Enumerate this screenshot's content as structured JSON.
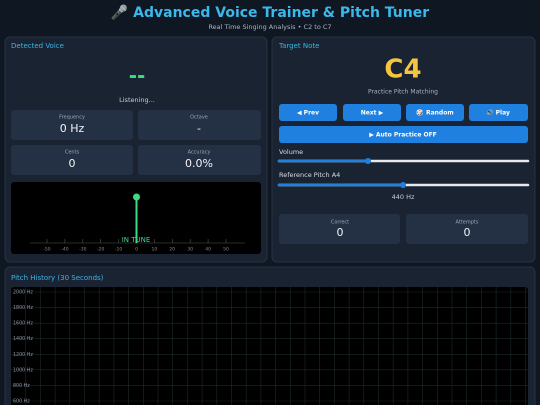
{
  "header": {
    "title": "🎤 Advanced Voice Trainer & Pitch Tuner",
    "subtitle": "Real Time Singing Analysis • C2 to C7"
  },
  "detected": {
    "title": "Detected Voice",
    "note": "--",
    "status": "Listening...",
    "stats": [
      {
        "label": "Frequency",
        "value": "0 Hz"
      },
      {
        "label": "Octave",
        "value": "-"
      },
      {
        "label": "Cents",
        "value": "0"
      },
      {
        "label": "Accuracy",
        "value": "0.0%"
      }
    ]
  },
  "tuner": {
    "ticks": [
      -50,
      -40,
      -30,
      -20,
      -10,
      0,
      10,
      20,
      30,
      40,
      50
    ],
    "needle": 0,
    "status": "IN TUNE"
  },
  "target": {
    "title": "Target Note",
    "note": "C4",
    "subtitle": "Practice Pitch Matching",
    "buttons": [
      "◀ Prev",
      "Next ▶",
      "🎲 Random",
      "🔊 Play"
    ],
    "auto_practice": "▶ Auto Practice OFF",
    "volume_label": "Volume",
    "reference_label": "Reference Pitch A4",
    "reference_value": "440 Hz",
    "stats": [
      {
        "label": "Correct",
        "value": "0"
      },
      {
        "label": "Attempts",
        "value": "0"
      }
    ]
  },
  "pitch_history": {
    "title": "Pitch History (30 Seconds)",
    "yticks": [
      {
        "value": 2000,
        "label": "2000 Hz"
      },
      {
        "value": 1800,
        "label": "1800 Hz"
      },
      {
        "value": 1600,
        "label": "1600 Hz"
      },
      {
        "value": 1400,
        "label": "1400 Hz"
      },
      {
        "value": 1200,
        "label": "1200 Hz"
      },
      {
        "value": 1000,
        "label": "1000 Hz"
      },
      {
        "value": 800,
        "label": "800 Hz"
      },
      {
        "value": 600,
        "label": "600 Hz"
      }
    ]
  }
}
